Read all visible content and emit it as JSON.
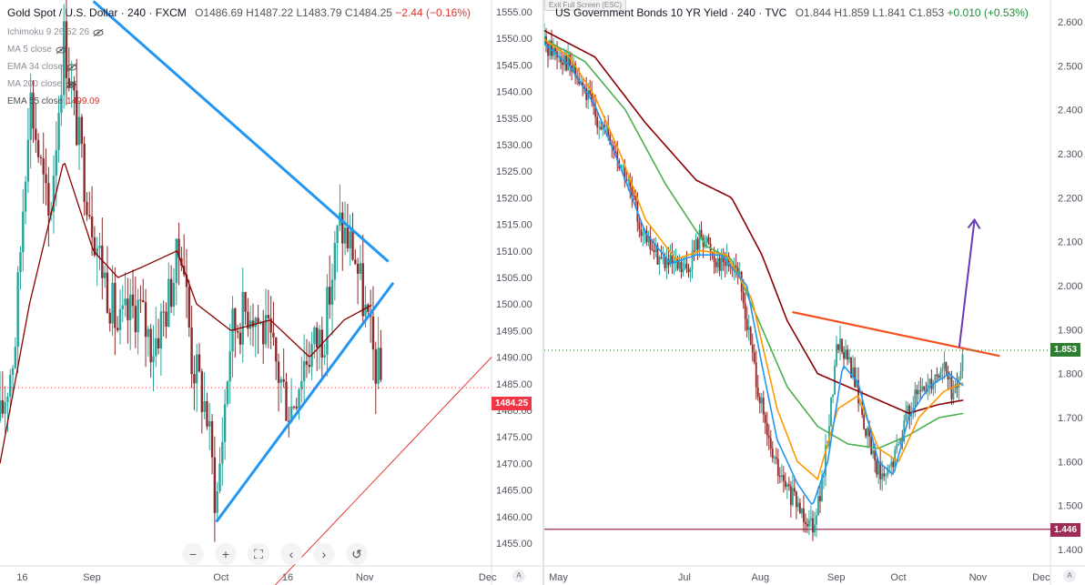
{
  "left_chart": {
    "title": "Gold Spot / U.S. Dollar · 240 · FXCM",
    "ohlc": "O1486.69 H1487.22 L1483.79 C1484.25",
    "change": "−2.44 (−0.16%)",
    "legend": [
      {
        "label": "Ichimoku 9 26 52 26",
        "value": ""
      },
      {
        "label": "MA 5 close",
        "value": ""
      },
      {
        "label": "EMA 34 close",
        "value": ""
      },
      {
        "label": "MA 200 close",
        "value": ""
      },
      {
        "label": "EMA 55 close",
        "value": "1499.09"
      }
    ],
    "last_price": "1484.25",
    "nav_buttons": [
      "−",
      "+",
      "⛶",
      "‹",
      "›",
      "↺"
    ],
    "colors": {
      "trendline": "#2196f3",
      "ema": "#8b0000",
      "last": "#f23645",
      "up": "#26a69a",
      "down": "#8b2a2a"
    }
  },
  "right_chart": {
    "title": "US Government Bonds 10 YR Yield · 240 · TVC",
    "ohlc": "O1.844 H1.859 L1.841 C1.853",
    "change": "+0.010 (+0.53%)",
    "last_price": "1.853",
    "support_price": "1.446",
    "exit_full_screen": "Exit Full Screen (ESC)",
    "colors": {
      "resistance": "#f4511e",
      "support": "#9c2c55",
      "arrow": "#673ab7",
      "ma_blue": "#2196f3",
      "ma_orange": "#ff9800",
      "ma_green": "#4caf50",
      "ma_dark": "#8b0000",
      "last": "#2e7d32"
    }
  },
  "chart_data": [
    {
      "type": "candlestick",
      "title": "Gold Spot / U.S. Dollar · 240 · FXCM",
      "ylim": [
        1455,
        1560
      ],
      "y_ticks": [
        "1555.00",
        "1550.00",
        "1545.00",
        "1540.00",
        "1535.00",
        "1530.00",
        "1525.00",
        "1520.00",
        "1515.00",
        "1510.00",
        "1505.00",
        "1500.00",
        "1495.00",
        "1490.00",
        "1485.00",
        "1480.00",
        "1475.00",
        "1470.00",
        "1465.00",
        "1460.00",
        "1455.00"
      ],
      "x_ticks": [
        "16",
        "Sep",
        "Oct",
        "16",
        "Nov",
        "Dec"
      ],
      "close_path": [
        [
          0,
          1478
        ],
        [
          0.03,
          1492
        ],
        [
          0.06,
          1540
        ],
        [
          0.1,
          1515
        ],
        [
          0.13,
          1550
        ],
        [
          0.17,
          1525
        ],
        [
          0.2,
          1510
        ],
        [
          0.24,
          1495
        ],
        [
          0.28,
          1500
        ],
        [
          0.31,
          1492
        ],
        [
          0.34,
          1500
        ],
        [
          0.37,
          1512
        ],
        [
          0.39,
          1490
        ],
        [
          0.42,
          1480
        ],
        [
          0.44,
          1462
        ],
        [
          0.47,
          1495
        ],
        [
          0.51,
          1500
        ],
        [
          0.55,
          1492
        ],
        [
          0.59,
          1480
        ],
        [
          0.62,
          1490
        ],
        [
          0.66,
          1495
        ],
        [
          0.69,
          1515
        ],
        [
          0.72,
          1510
        ],
        [
          0.76,
          1490
        ],
        [
          0.78,
          1484
        ]
      ],
      "ema55_path": [
        [
          0,
          1470
        ],
        [
          0.06,
          1500
        ],
        [
          0.13,
          1527
        ],
        [
          0.19,
          1510
        ],
        [
          0.24,
          1505
        ],
        [
          0.29,
          1507
        ],
        [
          0.36,
          1510
        ],
        [
          0.4,
          1500
        ],
        [
          0.47,
          1495
        ],
        [
          0.55,
          1497
        ],
        [
          0.63,
          1490
        ],
        [
          0.7,
          1497
        ],
        [
          0.76,
          1500
        ]
      ],
      "trendlines": [
        {
          "from": [
            0.19,
            1557
          ],
          "to": [
            0.79,
            1508
          ],
          "label": "upper"
        },
        {
          "from": [
            0.44,
            1459
          ],
          "to": [
            0.8,
            1504
          ],
          "label": "lower"
        }
      ],
      "last_value": 1484.25
    },
    {
      "type": "line",
      "title": "US Government Bonds 10 YR Yield · 240 · TVC",
      "ylim": [
        1.38,
        2.62
      ],
      "y_ticks": [
        "2.600",
        "2.500",
        "2.400",
        "2.300",
        "2.200",
        "2.100",
        "2.000",
        "1.900",
        "1.800",
        "1.700",
        "1.600",
        "1.500",
        "1.400"
      ],
      "x_ticks": [
        "May",
        "Jul",
        "Aug",
        "Sep",
        "Oct",
        "Nov",
        "Dec"
      ],
      "price_path": [
        [
          0,
          2.55
        ],
        [
          0.04,
          2.52
        ],
        [
          0.08,
          2.44
        ],
        [
          0.12,
          2.35
        ],
        [
          0.16,
          2.25
        ],
        [
          0.2,
          2.1
        ],
        [
          0.24,
          2.05
        ],
        [
          0.28,
          2.03
        ],
        [
          0.31,
          2.12
        ],
        [
          0.34,
          2.06
        ],
        [
          0.38,
          2.05
        ],
        [
          0.41,
          1.85
        ],
        [
          0.44,
          1.65
        ],
        [
          0.47,
          1.55
        ],
        [
          0.5,
          1.5
        ],
        [
          0.53,
          1.46
        ],
        [
          0.55,
          1.55
        ],
        [
          0.58,
          1.88
        ],
        [
          0.61,
          1.8
        ],
        [
          0.64,
          1.65
        ],
        [
          0.67,
          1.55
        ],
        [
          0.69,
          1.6
        ],
        [
          0.72,
          1.72
        ],
        [
          0.76,
          1.78
        ],
        [
          0.79,
          1.82
        ],
        [
          0.81,
          1.74
        ],
        [
          0.83,
          1.853
        ]
      ],
      "ma_blue": [
        [
          0,
          2.55
        ],
        [
          0.05,
          2.5
        ],
        [
          0.1,
          2.41
        ],
        [
          0.15,
          2.27
        ],
        [
          0.2,
          2.12
        ],
        [
          0.25,
          2.05
        ],
        [
          0.3,
          2.07
        ],
        [
          0.35,
          2.07
        ],
        [
          0.4,
          2.0
        ],
        [
          0.43,
          1.82
        ],
        [
          0.46,
          1.65
        ],
        [
          0.5,
          1.55
        ],
        [
          0.53,
          1.5
        ],
        [
          0.56,
          1.6
        ],
        [
          0.59,
          1.82
        ],
        [
          0.62,
          1.78
        ],
        [
          0.66,
          1.6
        ],
        [
          0.69,
          1.57
        ],
        [
          0.72,
          1.7
        ],
        [
          0.76,
          1.77
        ],
        [
          0.8,
          1.8
        ],
        [
          0.83,
          1.77
        ]
      ],
      "ma_orange": [
        [
          0,
          2.56
        ],
        [
          0.05,
          2.52
        ],
        [
          0.1,
          2.43
        ],
        [
          0.15,
          2.3
        ],
        [
          0.2,
          2.15
        ],
        [
          0.26,
          2.06
        ],
        [
          0.31,
          2.08
        ],
        [
          0.36,
          2.07
        ],
        [
          0.41,
          1.97
        ],
        [
          0.46,
          1.72
        ],
        [
          0.5,
          1.6
        ],
        [
          0.54,
          1.56
        ],
        [
          0.58,
          1.72
        ],
        [
          0.62,
          1.75
        ],
        [
          0.66,
          1.63
        ],
        [
          0.7,
          1.6
        ],
        [
          0.74,
          1.7
        ],
        [
          0.79,
          1.76
        ],
        [
          0.83,
          1.78
        ]
      ],
      "ma_green": [
        [
          0,
          2.56
        ],
        [
          0.08,
          2.51
        ],
        [
          0.16,
          2.4
        ],
        [
          0.24,
          2.23
        ],
        [
          0.32,
          2.09
        ],
        [
          0.37,
          2.06
        ],
        [
          0.42,
          1.93
        ],
        [
          0.48,
          1.77
        ],
        [
          0.54,
          1.68
        ],
        [
          0.6,
          1.64
        ],
        [
          0.66,
          1.63
        ],
        [
          0.72,
          1.66
        ],
        [
          0.78,
          1.7
        ],
        [
          0.83,
          1.71
        ]
      ],
      "ma_dark": [
        [
          0,
          2.58
        ],
        [
          0.1,
          2.52
        ],
        [
          0.2,
          2.37
        ],
        [
          0.3,
          2.24
        ],
        [
          0.37,
          2.2
        ],
        [
          0.43,
          2.07
        ],
        [
          0.48,
          1.92
        ],
        [
          0.54,
          1.8
        ],
        [
          0.6,
          1.77
        ],
        [
          0.66,
          1.74
        ],
        [
          0.72,
          1.71
        ],
        [
          0.78,
          1.73
        ],
        [
          0.83,
          1.74
        ]
      ],
      "resistance": {
        "from": [
          0.49,
          1.94
        ],
        "to": [
          0.9,
          1.84
        ]
      },
      "support": 1.446,
      "arrow": {
        "from": [
          0.82,
          1.86
        ],
        "to": [
          0.85,
          2.15
        ]
      },
      "last_value": 1.853
    }
  ]
}
